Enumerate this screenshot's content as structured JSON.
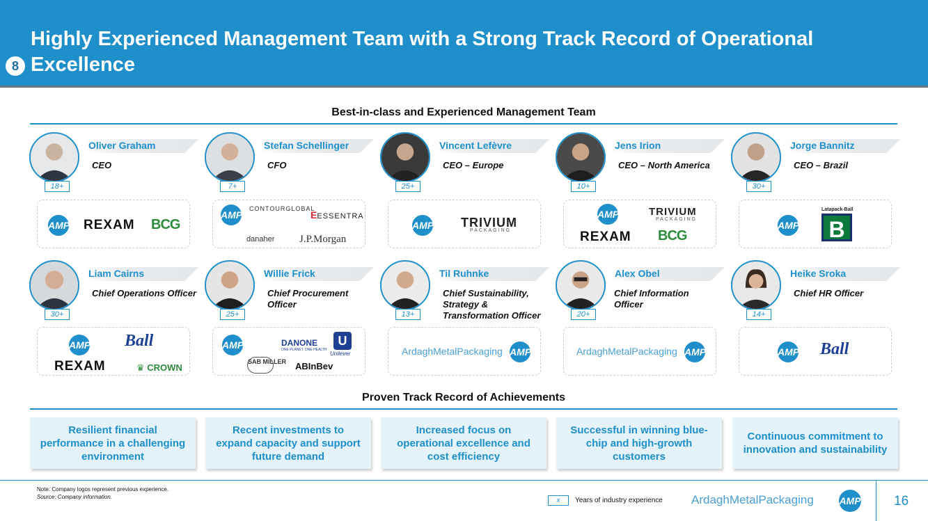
{
  "header": {
    "title": "Highly Experienced Management Team with a Strong Track Record of Operational Excellence",
    "section_number": "8"
  },
  "team_section_title": "Best-in-class and Experienced Management Team",
  "people": [
    {
      "name": "Oliver Graham",
      "role": "CEO",
      "years": "18+"
    },
    {
      "name": "Stefan Schellinger",
      "role": "CFO",
      "years": "7+"
    },
    {
      "name": "Vincent Lefèvre",
      "role": "CEO – Europe",
      "years": "25+"
    },
    {
      "name": "Jens Irion",
      "role": "CEO – North America",
      "years": "10+"
    },
    {
      "name": "Jorge Bannitz",
      "role": "CEO – Brazil",
      "years": "30+"
    },
    {
      "name": "Liam Cairns",
      "role": "Chief Operations Officer",
      "years": "30+"
    },
    {
      "name": "Willie Frick",
      "role": "Chief Procurement Officer",
      "years": "25+"
    },
    {
      "name": "Til Ruhnke",
      "role": "Chief Sustainability, Strategy & Transformation Officer",
      "years": "13+"
    },
    {
      "name": "Alex Obel",
      "role": "Chief Information Officer",
      "years": "20+"
    },
    {
      "name": "Heike Sroka",
      "role": "Chief HR Officer",
      "years": "14+"
    }
  ],
  "logos": {
    "amp": "AMP",
    "rexam": "REXAM",
    "bcg": "BCG",
    "trivium": "TRIVIUM",
    "trivium_sub": "PACKAGING",
    "contourglobal": "CONTOURGLOBAL",
    "essentra": "ESSENTRA",
    "danaher": "danaher",
    "jpmorgan": "J.P.Morgan",
    "latapack": "Latapack-Ball",
    "latapack_letter": "B",
    "ball": "Ball",
    "crown": "CROWN",
    "danone": "DANONE",
    "danone_sub": "ONE PLANET. ONE HEALTH",
    "unilever": "Unilever",
    "unilever_letter": "U",
    "sab": "SAB MILLER",
    "abinbev": "ABInBev",
    "ardagh_metal_packaging": "ArdaghMetalPackaging"
  },
  "achievements_title": "Proven Track Record of Achievements",
  "achievements": [
    "Resilient financial performance in a challenging environment",
    "Recent investments to expand capacity and support future demand",
    "Increased focus on operational excellence and cost efficiency",
    "Successful in winning blue-chip and high-growth customers",
    "Continuous commitment to innovation and sustainability"
  ],
  "footer": {
    "note": "Note: Company logos represent previous experience.",
    "source": "Source: Company information.",
    "legend_symbol": "x",
    "legend_text": "Years of industry experience",
    "brand": "ArdaghMetalPackaging",
    "page_number": "16"
  },
  "colors": {
    "primary_blue": "#1f8fcc",
    "tile_background": "#e4f2f9"
  }
}
